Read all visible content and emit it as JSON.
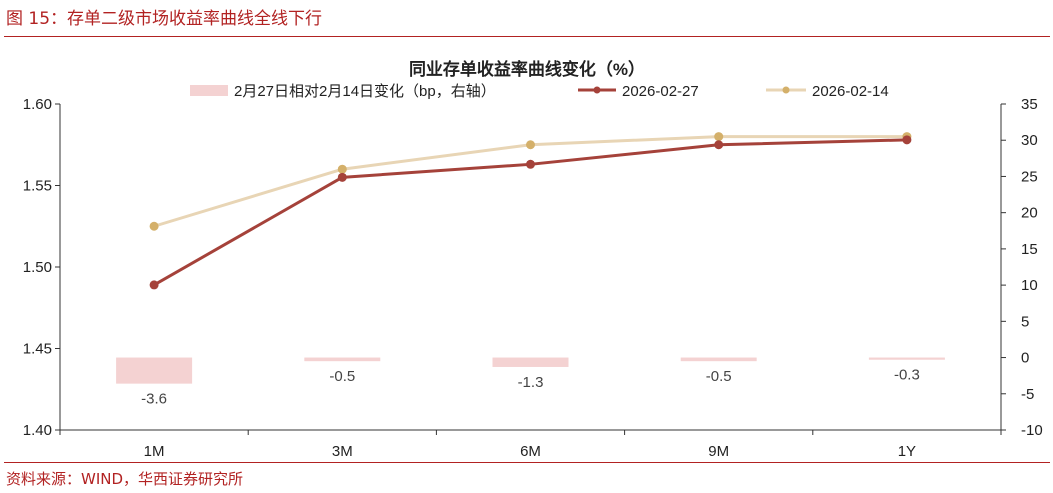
{
  "figure_title": "图 15：存单二级市场收益率曲线全线下行",
  "source": "资料来源：WIND，华西证券研究所",
  "colors": {
    "accent": "#b22222",
    "bar": "#f4d2d2",
    "series_1": "#a5423a",
    "series_2": "#e8d5b5",
    "series_2_marker": "#d4b06a"
  },
  "chart_data": {
    "type": "bar+line",
    "title": "同业存单收益率曲线变化（%）",
    "categories": [
      "1M",
      "3M",
      "6M",
      "9M",
      "1Y"
    ],
    "bars": {
      "name": "2月27日相对2月14日变化（bp，右轴）",
      "values": [
        -3.6,
        -0.5,
        -1.3,
        -0.5,
        -0.3
      ],
      "labels": [
        "-3.6",
        "-0.5",
        "-1.3",
        "-0.5",
        "-0.3"
      ],
      "axis": "right"
    },
    "series": [
      {
        "name": "2026-02-27",
        "values": [
          1.489,
          1.555,
          1.563,
          1.575,
          1.578
        ],
        "axis": "left"
      },
      {
        "name": "2026-02-14",
        "values": [
          1.525,
          1.56,
          1.575,
          1.58,
          1.58
        ],
        "axis": "left"
      }
    ],
    "y_left": {
      "min": 1.4,
      "max": 1.6,
      "ticks": [
        "1.40",
        "1.45",
        "1.50",
        "1.55",
        "1.60"
      ]
    },
    "y_right": {
      "min": -10,
      "max": 35,
      "ticks": [
        "-10",
        "-5",
        "0",
        "5",
        "10",
        "15",
        "20",
        "25",
        "30",
        "35"
      ]
    },
    "legend_position": "top"
  }
}
